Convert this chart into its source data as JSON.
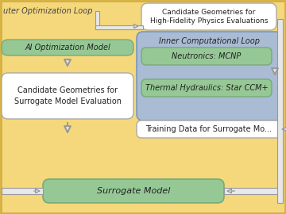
{
  "bg_yellow": "#f5d87c",
  "white": "#ffffff",
  "green": "#96c896",
  "blue_region": "#aabbd4",
  "border_yellow": "#d4b040",
  "text_dark": "#222222",
  "text_mid": "#444444",
  "arrow_gray": "#999999",
  "arrow_fill": "#e8e8e8",
  "outer_loop_text": "uter Optimization Loop",
  "hifi_text": "Candidate Geometries for\nHigh-Fidelity Physics Evaluations",
  "ai_text": "AI Optimization Model",
  "inner_loop_text": "Inner Computational Loop",
  "neutronics_text": "Neutronics: MCNP",
  "thermal_text": "Thermal Hydraulics: Star CCM+",
  "candidate_surr_text": "Candidate Geometries for\nSurrogate Model Evaluation",
  "training_text": "Training Data for Surrogate Mo...",
  "surrogate_text": "Surrogate Model",
  "figsize": [
    3.6,
    2.7
  ],
  "dpi": 100
}
